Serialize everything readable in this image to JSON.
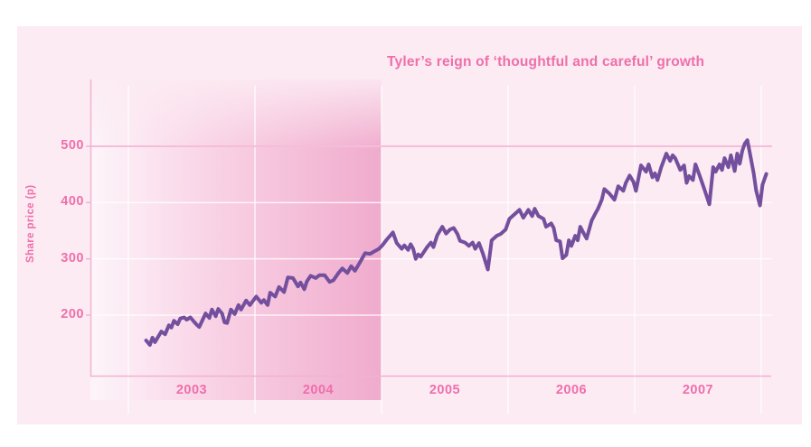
{
  "colors": {
    "page_bg": "#ffffff",
    "card_bg": "#fcebf3",
    "title_text": "#ef6fab",
    "axis_text": "#ef6fab",
    "line": "#744f9e",
    "axis_line": "#f2b2d2",
    "grid_white": "rgba(255,255,255,0.8)",
    "grid_500_pink": "#f5bdd8",
    "highlight_from": "#fdf5fa",
    "highlight_mid": "#f9d4e6",
    "highlight_to": "#f0abcd"
  },
  "chart_data": {
    "type": "line",
    "title": "Tyler’s reign of ‘thoughtful and careful’ growth",
    "xlabel": "",
    "ylabel": "Share price (p)",
    "x_ticks": [
      2003,
      2004,
      2005,
      2006,
      2007
    ],
    "y_ticks": [
      200,
      300,
      400,
      500
    ],
    "xlim": [
      2002.7,
      2008.1
    ],
    "ylim": [
      90,
      620
    ],
    "grid": {
      "horizontal": true,
      "vertical": true,
      "highlighted_line_at": 500
    },
    "legend": null,
    "highlight_region": {
      "x_start": 2002.7,
      "x_end": 2005.0,
      "style": "pink gradient band, light at left fading to saturated pink at right"
    },
    "series": [
      {
        "name": "Share price (p)",
        "points": [
          [
            2003.14,
            155
          ],
          [
            2003.17,
            147
          ],
          [
            2003.19,
            160
          ],
          [
            2003.21,
            152
          ],
          [
            2003.26,
            171
          ],
          [
            2003.29,
            166
          ],
          [
            2003.32,
            182
          ],
          [
            2003.34,
            178
          ],
          [
            2003.36,
            190
          ],
          [
            2003.39,
            184
          ],
          [
            2003.41,
            194
          ],
          [
            2003.44,
            196
          ],
          [
            2003.46,
            192
          ],
          [
            2003.49,
            196
          ],
          [
            2003.52,
            188
          ],
          [
            2003.54,
            183
          ],
          [
            2003.56,
            179
          ],
          [
            2003.61,
            203
          ],
          [
            2003.64,
            195
          ],
          [
            2003.66,
            210
          ],
          [
            2003.69,
            198
          ],
          [
            2003.71,
            211
          ],
          [
            2003.74,
            203
          ],
          [
            2003.76,
            187
          ],
          [
            2003.78,
            186
          ],
          [
            2003.81,
            210
          ],
          [
            2003.84,
            202
          ],
          [
            2003.87,
            218
          ],
          [
            2003.89,
            210
          ],
          [
            2003.93,
            226
          ],
          [
            2003.96,
            218
          ],
          [
            2003.99,
            227
          ],
          [
            2004.01,
            233
          ],
          [
            2004.05,
            222
          ],
          [
            2004.07,
            227
          ],
          [
            2004.1,
            218
          ],
          [
            2004.12,
            240
          ],
          [
            2004.16,
            233
          ],
          [
            2004.19,
            250
          ],
          [
            2004.23,
            241
          ],
          [
            2004.26,
            267
          ],
          [
            2004.3,
            266
          ],
          [
            2004.34,
            251
          ],
          [
            2004.36,
            258
          ],
          [
            2004.39,
            246
          ],
          [
            2004.41,
            260
          ],
          [
            2004.44,
            270
          ],
          [
            2004.48,
            266
          ],
          [
            2004.51,
            271
          ],
          [
            2004.55,
            271
          ],
          [
            2004.59,
            259
          ],
          [
            2004.62,
            262
          ],
          [
            2004.66,
            275
          ],
          [
            2004.69,
            283
          ],
          [
            2004.73,
            275
          ],
          [
            2004.76,
            287
          ],
          [
            2004.79,
            279
          ],
          [
            2004.83,
            294
          ],
          [
            2004.87,
            310
          ],
          [
            2004.91,
            309
          ],
          [
            2004.94,
            313
          ],
          [
            2004.98,
            318
          ],
          [
            2005.01,
            325
          ],
          [
            2005.04,
            334
          ],
          [
            2005.09,
            347
          ],
          [
            2005.12,
            328
          ],
          [
            2005.16,
            318
          ],
          [
            2005.18,
            324
          ],
          [
            2005.21,
            316
          ],
          [
            2005.23,
            326
          ],
          [
            2005.25,
            318
          ],
          [
            2005.27,
            300
          ],
          [
            2005.29,
            308
          ],
          [
            2005.31,
            304
          ],
          [
            2005.36,
            321
          ],
          [
            2005.39,
            329
          ],
          [
            2005.41,
            321
          ],
          [
            2005.44,
            342
          ],
          [
            2005.48,
            357
          ],
          [
            2005.51,
            345
          ],
          [
            2005.54,
            352
          ],
          [
            2005.57,
            355
          ],
          [
            2005.6,
            344
          ],
          [
            2005.62,
            332
          ],
          [
            2005.66,
            329
          ],
          [
            2005.69,
            323
          ],
          [
            2005.72,
            329
          ],
          [
            2005.74,
            318
          ],
          [
            2005.77,
            328
          ],
          [
            2005.8,
            310
          ],
          [
            2005.84,
            281
          ],
          [
            2005.87,
            333
          ],
          [
            2005.91,
            341
          ],
          [
            2005.94,
            344
          ],
          [
            2005.98,
            352
          ],
          [
            2006.01,
            371
          ],
          [
            2006.05,
            379
          ],
          [
            2006.09,
            387
          ],
          [
            2006.12,
            373
          ],
          [
            2006.16,
            387
          ],
          [
            2006.19,
            376
          ],
          [
            2006.21,
            389
          ],
          [
            2006.24,
            376
          ],
          [
            2006.28,
            371
          ],
          [
            2006.3,
            357
          ],
          [
            2006.34,
            363
          ],
          [
            2006.36,
            355
          ],
          [
            2006.38,
            333
          ],
          [
            2006.41,
            331
          ],
          [
            2006.43,
            301
          ],
          [
            2006.46,
            307
          ],
          [
            2006.48,
            333
          ],
          [
            2006.5,
            323
          ],
          [
            2006.53,
            341
          ],
          [
            2006.55,
            333
          ],
          [
            2006.57,
            357
          ],
          [
            2006.6,
            344
          ],
          [
            2006.62,
            336
          ],
          [
            2006.66,
            368
          ],
          [
            2006.69,
            381
          ],
          [
            2006.71,
            389
          ],
          [
            2006.74,
            405
          ],
          [
            2006.76,
            424
          ],
          [
            2006.8,
            416
          ],
          [
            2006.84,
            405
          ],
          [
            2006.87,
            429
          ],
          [
            2006.91,
            421
          ],
          [
            2006.93,
            435
          ],
          [
            2006.96,
            448
          ],
          [
            2006.99,
            437
          ],
          [
            2007.01,
            421
          ],
          [
            2007.05,
            466
          ],
          [
            2007.09,
            455
          ],
          [
            2007.11,
            468
          ],
          [
            2007.14,
            445
          ],
          [
            2007.16,
            452
          ],
          [
            2007.18,
            440
          ],
          [
            2007.21,
            463
          ],
          [
            2007.25,
            487
          ],
          [
            2007.28,
            474
          ],
          [
            2007.3,
            484
          ],
          [
            2007.32,
            479
          ],
          [
            2007.36,
            458
          ],
          [
            2007.39,
            466
          ],
          [
            2007.41,
            435
          ],
          [
            2007.43,
            447
          ],
          [
            2007.46,
            440
          ],
          [
            2007.48,
            468
          ],
          [
            2007.51,
            450
          ],
          [
            2007.55,
            424
          ],
          [
            2007.59,
            397
          ],
          [
            2007.62,
            463
          ],
          [
            2007.64,
            455
          ],
          [
            2007.67,
            468
          ],
          [
            2007.69,
            458
          ],
          [
            2007.71,
            479
          ],
          [
            2007.74,
            463
          ],
          [
            2007.76,
            484
          ],
          [
            2007.79,
            456
          ],
          [
            2007.81,
            487
          ],
          [
            2007.83,
            469
          ],
          [
            2007.85,
            492
          ],
          [
            2007.87,
            505
          ],
          [
            2007.89,
            511
          ],
          [
            2007.91,
            488
          ],
          [
            2007.94,
            452
          ],
          [
            2007.96,
            421
          ],
          [
            2007.99,
            395
          ],
          [
            2008.01,
            432
          ],
          [
            2008.04,
            451
          ]
        ]
      }
    ]
  }
}
